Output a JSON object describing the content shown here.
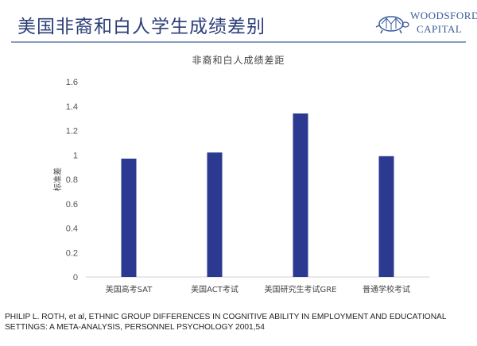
{
  "header": {
    "title": "美国非裔和白人学生成绩差别"
  },
  "logo": {
    "line1": "WOODSFORD",
    "line2": "CAPITAL",
    "icon": "tortoise-icon",
    "color": "#3a5a9a"
  },
  "chart_data": {
    "type": "bar",
    "title": "非裔和白人成绩差距",
    "ylabel": "标准差",
    "xlabel": "",
    "categories": [
      "美国高考SAT",
      "美国ACT考试",
      "美国研究生考试GRE",
      "普通学校考试"
    ],
    "values": [
      0.97,
      1.02,
      1.34,
      0.99
    ],
    "ylim": [
      0,
      1.6
    ],
    "yticks": [
      "0",
      "0.2",
      "0.4",
      "0.6",
      "0.8",
      "1",
      "1.2",
      "1.4",
      "1.6"
    ],
    "bar_color": "#2b3990",
    "grid": false
  },
  "citation": {
    "line1": "PHILIP L. ROTH, et al, ETHNIC GROUP DIFFERENCES IN COGNITIVE ABILITY IN EMPLOYMENT AND EDUCATIONAL",
    "line2": "SETTINGS: A META-ANALYSIS, PERSONNEL PSYCHOLOGY 2001,54"
  }
}
